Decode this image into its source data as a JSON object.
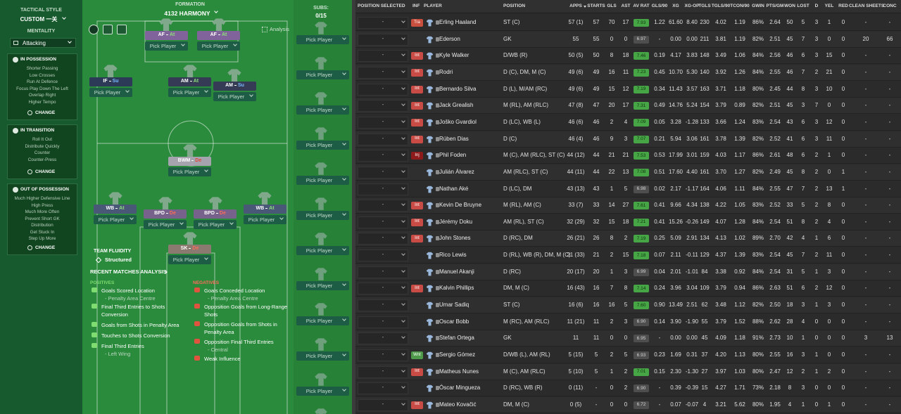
{
  "sidebar": {
    "tactical_style_label": "TACTICAL STYLE",
    "tactical_style": "CUSTOM 一关",
    "mentality_label": "MENTALITY",
    "mentality": "Attacking",
    "panels": [
      {
        "title": "IN POSSESSION",
        "items": [
          "Shorter Passing",
          "Low Crosses",
          "Run At Defence",
          "Focus Play Down The Left",
          "Overlap Right",
          "Higher Tempo"
        ],
        "button": "CHANGE"
      },
      {
        "title": "IN TRANSITION",
        "items": [
          "Roll It Out",
          "Distribute Quickly",
          "Counter",
          "Counter-Press"
        ],
        "button": "CHANGE"
      },
      {
        "title": "OUT OF POSSESSION",
        "items": [
          "Much Higher Defensive Line",
          "High Press",
          "Much More Often",
          "Prevent Short GK",
          "Distribution",
          "Get Stuck In",
          "Step Up More"
        ],
        "button": "CHANGE"
      }
    ]
  },
  "formation": {
    "label": "FORMATION",
    "name": "4132 HARMONY",
    "analysis": "Analysis",
    "subs_label": "SUBS:",
    "subs_count": "0/15",
    "pick_player": "Pick Player",
    "positions": [
      {
        "role": "AF",
        "duty": "At",
        "color": "#80639a",
        "duty_color": "#8be07a"
      },
      {
        "role": "AF",
        "duty": "At",
        "color": "#80639a",
        "duty_color": "#8be07a"
      },
      {
        "role": "IF",
        "duty": "Su",
        "color": "#2c3a57",
        "duty_color": "#79b8ff"
      },
      {
        "role": "AM",
        "duty": "At",
        "color": "#363b55",
        "duty_color": "#8be07a"
      },
      {
        "role": "AM",
        "duty": "Su",
        "color": "#363b55",
        "duty_color": "#79b8ff"
      },
      {
        "role": "BWM",
        "duty": "De",
        "color": "#a5a3ae",
        "duty_color": "#e2463a"
      },
      {
        "role": "WB",
        "duty": "At",
        "color": "#4a5878",
        "duty_color": "#8be07a"
      },
      {
        "role": "BPD",
        "duty": "De",
        "color": "#76628a",
        "duty_color": "#ff6a5a"
      },
      {
        "role": "BPD",
        "duty": "De",
        "color": "#76628a",
        "duty_color": "#ff6a5a"
      },
      {
        "role": "WB",
        "duty": "At",
        "color": "#4a5878",
        "duty_color": "#8be07a"
      },
      {
        "role": "SK",
        "duty": "De",
        "color": "#8a7a70",
        "duty_color": "#ff6a5a"
      }
    ],
    "team_fluidity_label": "TEAM FLUIDITY",
    "team_fluidity": "Structured"
  },
  "analysis": {
    "title": "RECENT MATCHES ANALYSIS",
    "positives_label": "POSITIVES",
    "positives": [
      {
        "text": "Goals Scored Location",
        "detail": "- Penalty Area Centre"
      },
      {
        "text": "Final Third Entries to Shots Conversion"
      },
      {
        "text": "Goals from Shots in Penalty Area"
      },
      {
        "text": "Touches to Shots Conversion"
      },
      {
        "text": "Final Third Entries",
        "detail": "- Left Wing"
      }
    ],
    "negatives_label": "NEGATIVES",
    "negatives": [
      {
        "text": "Goals Conceded Location",
        "detail": "- Penalty Area Centre"
      },
      {
        "text": "Opposition Goals from Long-Range Shots"
      },
      {
        "text": "Opposition Goals from Shots in Penalty Area"
      },
      {
        "text": "Opposition Final Third Entries",
        "detail": "- Central"
      },
      {
        "text": "Weak Influence"
      }
    ]
  },
  "table": {
    "columns": [
      "POSITION SELECTED",
      "INF",
      "PLAYER",
      "POSITION",
      "APPS",
      "STARTS",
      "GLS",
      "AST",
      "AV RAT",
      "GLS/90",
      "XG",
      "XG-OP",
      "TGLS",
      "TGLS/90",
      "TCON/90",
      "GWIN",
      "PTS/GM",
      "WON",
      "LOST",
      "D",
      "YEL",
      "RED",
      "CLEAN SHEETS",
      "CONC"
    ],
    "rows": [
      {
        "sel": "-",
        "inf": {
          "text": "Tra",
          "color": "#c9503f"
        },
        "cells": [
          "Erling Haaland",
          "ST (C)",
          "57 (1)",
          "57",
          "70",
          "17",
          "7.93",
          "1.22",
          "61.60",
          "8.40",
          "230",
          "4.02",
          "1.19",
          "86%",
          "2.64",
          "50",
          "5",
          "3",
          "1",
          "0",
          "-",
          "-"
        ]
      },
      {
        "sel": "-",
        "cells": [
          "Ederson",
          "GK",
          "55",
          "55",
          "0",
          "0",
          "6.97",
          "-",
          "0.00",
          "0.00",
          "211",
          "3.81",
          "1.19",
          "82%",
          "2.51",
          "45",
          "7",
          "3",
          "0",
          "0",
          "20",
          "66"
        ]
      },
      {
        "sel": "-",
        "inf": {
          "text": "Int",
          "color": "#c94b45"
        },
        "cells": [
          "Kyle Walker",
          "D/WB (R)",
          "50 (5)",
          "50",
          "8",
          "18",
          "7.46",
          "0.19",
          "4.17",
          "3.83",
          "148",
          "3.49",
          "1.06",
          "84%",
          "2.56",
          "46",
          "6",
          "3",
          "15",
          "0",
          "-",
          "-"
        ]
      },
      {
        "sel": "-",
        "inf": {
          "text": "Int",
          "color": "#c94b45"
        },
        "cells": [
          "Rodri",
          "D (C), DM, M (C)",
          "49 (6)",
          "49",
          "16",
          "11",
          "7.23",
          "0.45",
          "10.70",
          "5.30",
          "140",
          "3.92",
          "1.26",
          "84%",
          "2.55",
          "46",
          "7",
          "2",
          "21",
          "0",
          "-",
          "-"
        ]
      },
      {
        "sel": "-",
        "inf": {
          "text": "Int",
          "color": "#c94b45"
        },
        "cells": [
          "Bernardo Silva",
          "D (L), M/AM (RC)",
          "49 (6)",
          "49",
          "15",
          "12",
          "7.19",
          "0.34",
          "11.43",
          "3.57",
          "163",
          "3.71",
          "1.18",
          "80%",
          "2.45",
          "44",
          "8",
          "3",
          "10",
          "0",
          "-",
          "-"
        ]
      },
      {
        "sel": "-",
        "inf": {
          "text": "Int",
          "color": "#c94b45"
        },
        "cells": [
          "Jack Grealish",
          "M (RL), AM (RLC)",
          "47 (8)",
          "47",
          "20",
          "17",
          "7.31",
          "0.49",
          "14.76",
          "5.24",
          "154",
          "3.79",
          "0.89",
          "82%",
          "2.51",
          "45",
          "3",
          "7",
          "0",
          "0",
          "-",
          "-"
        ]
      },
      {
        "sel": "-",
        "inf": {
          "text": "Int",
          "color": "#c94b45"
        },
        "cells": [
          "Joško Gvardiol",
          "D (LC), WB (L)",
          "46 (6)",
          "46",
          "2",
          "4",
          "7.09",
          "0.05",
          "3.28",
          "-1.28",
          "133",
          "3.66",
          "1.24",
          "83%",
          "2.54",
          "43",
          "6",
          "3",
          "12",
          "0",
          "-",
          "-"
        ]
      },
      {
        "sel": "-",
        "inf": {
          "text": "Int",
          "color": "#c94b45"
        },
        "cells": [
          "Rúben Dias",
          "D (C)",
          "46 (4)",
          "46",
          "9",
          "3",
          "7.07",
          "0.21",
          "5.94",
          "3.06",
          "161",
          "3.78",
          "1.39",
          "82%",
          "2.52",
          "41",
          "6",
          "3",
          "11",
          "0",
          "-",
          "-"
        ]
      },
      {
        "sel": "-",
        "inf": {
          "text": "Inj",
          "color": "#8e1b1b"
        },
        "cells": [
          "Phil Foden",
          "M (C), AM (RLC), ST (C)",
          "44 (12)",
          "44",
          "21",
          "21",
          "7.53",
          "0.53",
          "17.99",
          "3.01",
          "159",
          "4.03",
          "1.17",
          "86%",
          "2.61",
          "48",
          "6",
          "2",
          "1",
          "0",
          "-",
          "-"
        ]
      },
      {
        "sel": "-",
        "cells": [
          "Julián Álvarez",
          "AM (RLC), ST (C)",
          "44 (11)",
          "44",
          "22",
          "13",
          "7.08",
          "0.51",
          "17.60",
          "4.40",
          "161",
          "3.70",
          "1.27",
          "82%",
          "2.49",
          "45",
          "8",
          "2",
          "0",
          "1",
          "-",
          "-"
        ]
      },
      {
        "sel": "-",
        "cells": [
          "Nathan Aké",
          "D (LC), DM",
          "43 (13)",
          "43",
          "1",
          "5",
          "6.98",
          "0.02",
          "2.17",
          "-1.17",
          "164",
          "4.06",
          "1.11",
          "84%",
          "2.55",
          "47",
          "7",
          "2",
          "13",
          "1",
          "-",
          "-"
        ]
      },
      {
        "sel": "-",
        "inf": {
          "text": "Int",
          "color": "#c94b45"
        },
        "cells": [
          "Kevin De Bruyne",
          "M (RL), AM (C)",
          "33 (7)",
          "33",
          "14",
          "27",
          "7.61",
          "0.41",
          "9.66",
          "4.34",
          "138",
          "4.22",
          "1.05",
          "83%",
          "2.52",
          "33",
          "5",
          "2",
          "8",
          "0",
          "-",
          "-"
        ]
      },
      {
        "sel": "-",
        "inf": {
          "text": "Int",
          "color": "#c94b45"
        },
        "cells": [
          "Jérémy Doku",
          "AM (RL), ST (C)",
          "32 (29)",
          "32",
          "15",
          "18",
          "7.21",
          "0.41",
          "15.26",
          "-0.26",
          "149",
          "4.07",
          "1.28",
          "84%",
          "2.54",
          "51",
          "8",
          "2",
          "4",
          "0",
          "-",
          "-"
        ]
      },
      {
        "sel": "-",
        "inf": {
          "text": "Int",
          "color": "#c94b45"
        },
        "cells": [
          "John Stones",
          "D (RC), DM",
          "26 (21)",
          "26",
          "8",
          "2",
          "7.19",
          "0.25",
          "5.09",
          "2.91",
          "134",
          "4.13",
          "1.02",
          "89%",
          "2.70",
          "42",
          "4",
          "1",
          "6",
          "0",
          "-",
          "-"
        ]
      },
      {
        "sel": "-",
        "cells": [
          "Rico Lewis",
          "D (RL), WB (R), DM, M (C)",
          "21 (33)",
          "21",
          "2",
          "15",
          "7.18",
          "0.07",
          "2.11",
          "-0.11",
          "129",
          "4.37",
          "1.39",
          "83%",
          "2.54",
          "45",
          "7",
          "2",
          "11",
          "0",
          "-",
          "-"
        ]
      },
      {
        "sel": "-",
        "cells": [
          "Manuel Akanji",
          "D (RC)",
          "20 (17)",
          "20",
          "1",
          "3",
          "6.99",
          "0.04",
          "2.01",
          "-1.01",
          "84",
          "3.38",
          "0.92",
          "84%",
          "2.54",
          "31",
          "5",
          "1",
          "3",
          "0",
          "-",
          "-"
        ]
      },
      {
        "sel": "-",
        "inf": {
          "text": "Int",
          "color": "#c94b45"
        },
        "cells": [
          "Kalvin Phillips",
          "DM, M (C)",
          "16 (43)",
          "16",
          "7",
          "8",
          "7.14",
          "0.24",
          "3.96",
          "3.04",
          "109",
          "3.79",
          "0.94",
          "86%",
          "2.63",
          "51",
          "6",
          "2",
          "12",
          "0",
          "-",
          "-"
        ]
      },
      {
        "sel": "-",
        "cells": [
          "Umar Sadiq",
          "ST (C)",
          "16 (6)",
          "16",
          "16",
          "5",
          "7.60",
          "0.90",
          "13.49",
          "2.51",
          "62",
          "3.48",
          "1.12",
          "82%",
          "2.50",
          "18",
          "3",
          "1",
          "3",
          "0",
          "-",
          "-"
        ]
      },
      {
        "sel": "-",
        "cells": [
          "Oscar Bobb",
          "M (RC), AM (RLC)",
          "11 (21)",
          "11",
          "2",
          "3",
          "6.90",
          "0.14",
          "3.90",
          "-1.90",
          "55",
          "3.79",
          "1.52",
          "88%",
          "2.62",
          "28",
          "4",
          "0",
          "0",
          "0",
          "-",
          "-"
        ]
      },
      {
        "sel": "-",
        "cells": [
          "Stefan Ortega",
          "GK",
          "11",
          "11",
          "0",
          "0",
          "6.95",
          "-",
          "0.00",
          "0.00",
          "45",
          "4.09",
          "1.18",
          "91%",
          "2.73",
          "10",
          "1",
          "0",
          "0",
          "0",
          "3",
          "13"
        ]
      },
      {
        "sel": "-",
        "inf": {
          "text": "Wnt",
          "color": "#4f9a4a"
        },
        "cells": [
          "Sergio Gómez",
          "D/WB (L), AM (RL)",
          "5 (15)",
          "5",
          "2",
          "5",
          "6.93",
          "0.23",
          "1.69",
          "0.31",
          "37",
          "4.20",
          "1.13",
          "80%",
          "2.55",
          "16",
          "3",
          "1",
          "0",
          "0",
          "-",
          "-"
        ]
      },
      {
        "sel": "-",
        "inf": {
          "text": "Int",
          "color": "#c94b45"
        },
        "cells": [
          "Matheus Nunes",
          "M (C), AM (RLC)",
          "5 (10)",
          "5",
          "1",
          "2",
          "7.01",
          "0.15",
          "2.30",
          "-1.30",
          "27",
          "3.97",
          "1.03",
          "80%",
          "2.47",
          "12",
          "2",
          "1",
          "2",
          "0",
          "-",
          "-"
        ]
      },
      {
        "sel": "-",
        "cells": [
          "Óscar Mingueza",
          "D (RC), WB (R)",
          "0 (11)",
          "-",
          "0",
          "2",
          "6.90",
          "-",
          "0.39",
          "-0.39",
          "15",
          "4.27",
          "1.71",
          "73%",
          "2.18",
          "8",
          "3",
          "0",
          "0",
          "0",
          "-",
          "-"
        ]
      },
      {
        "sel": "-",
        "inf": {
          "text": "Int",
          "color": "#c94b45"
        },
        "cells": [
          "Mateo Kovačić",
          "DM, M (C)",
          "0 (5)",
          "-",
          "0",
          "0",
          "6.72",
          "-",
          "0.07",
          "-0.07",
          "4",
          "3.21",
          "5.62",
          "80%",
          "1.95",
          "4",
          "1",
          "0",
          "1",
          "0",
          "-",
          "-"
        ]
      }
    ]
  }
}
